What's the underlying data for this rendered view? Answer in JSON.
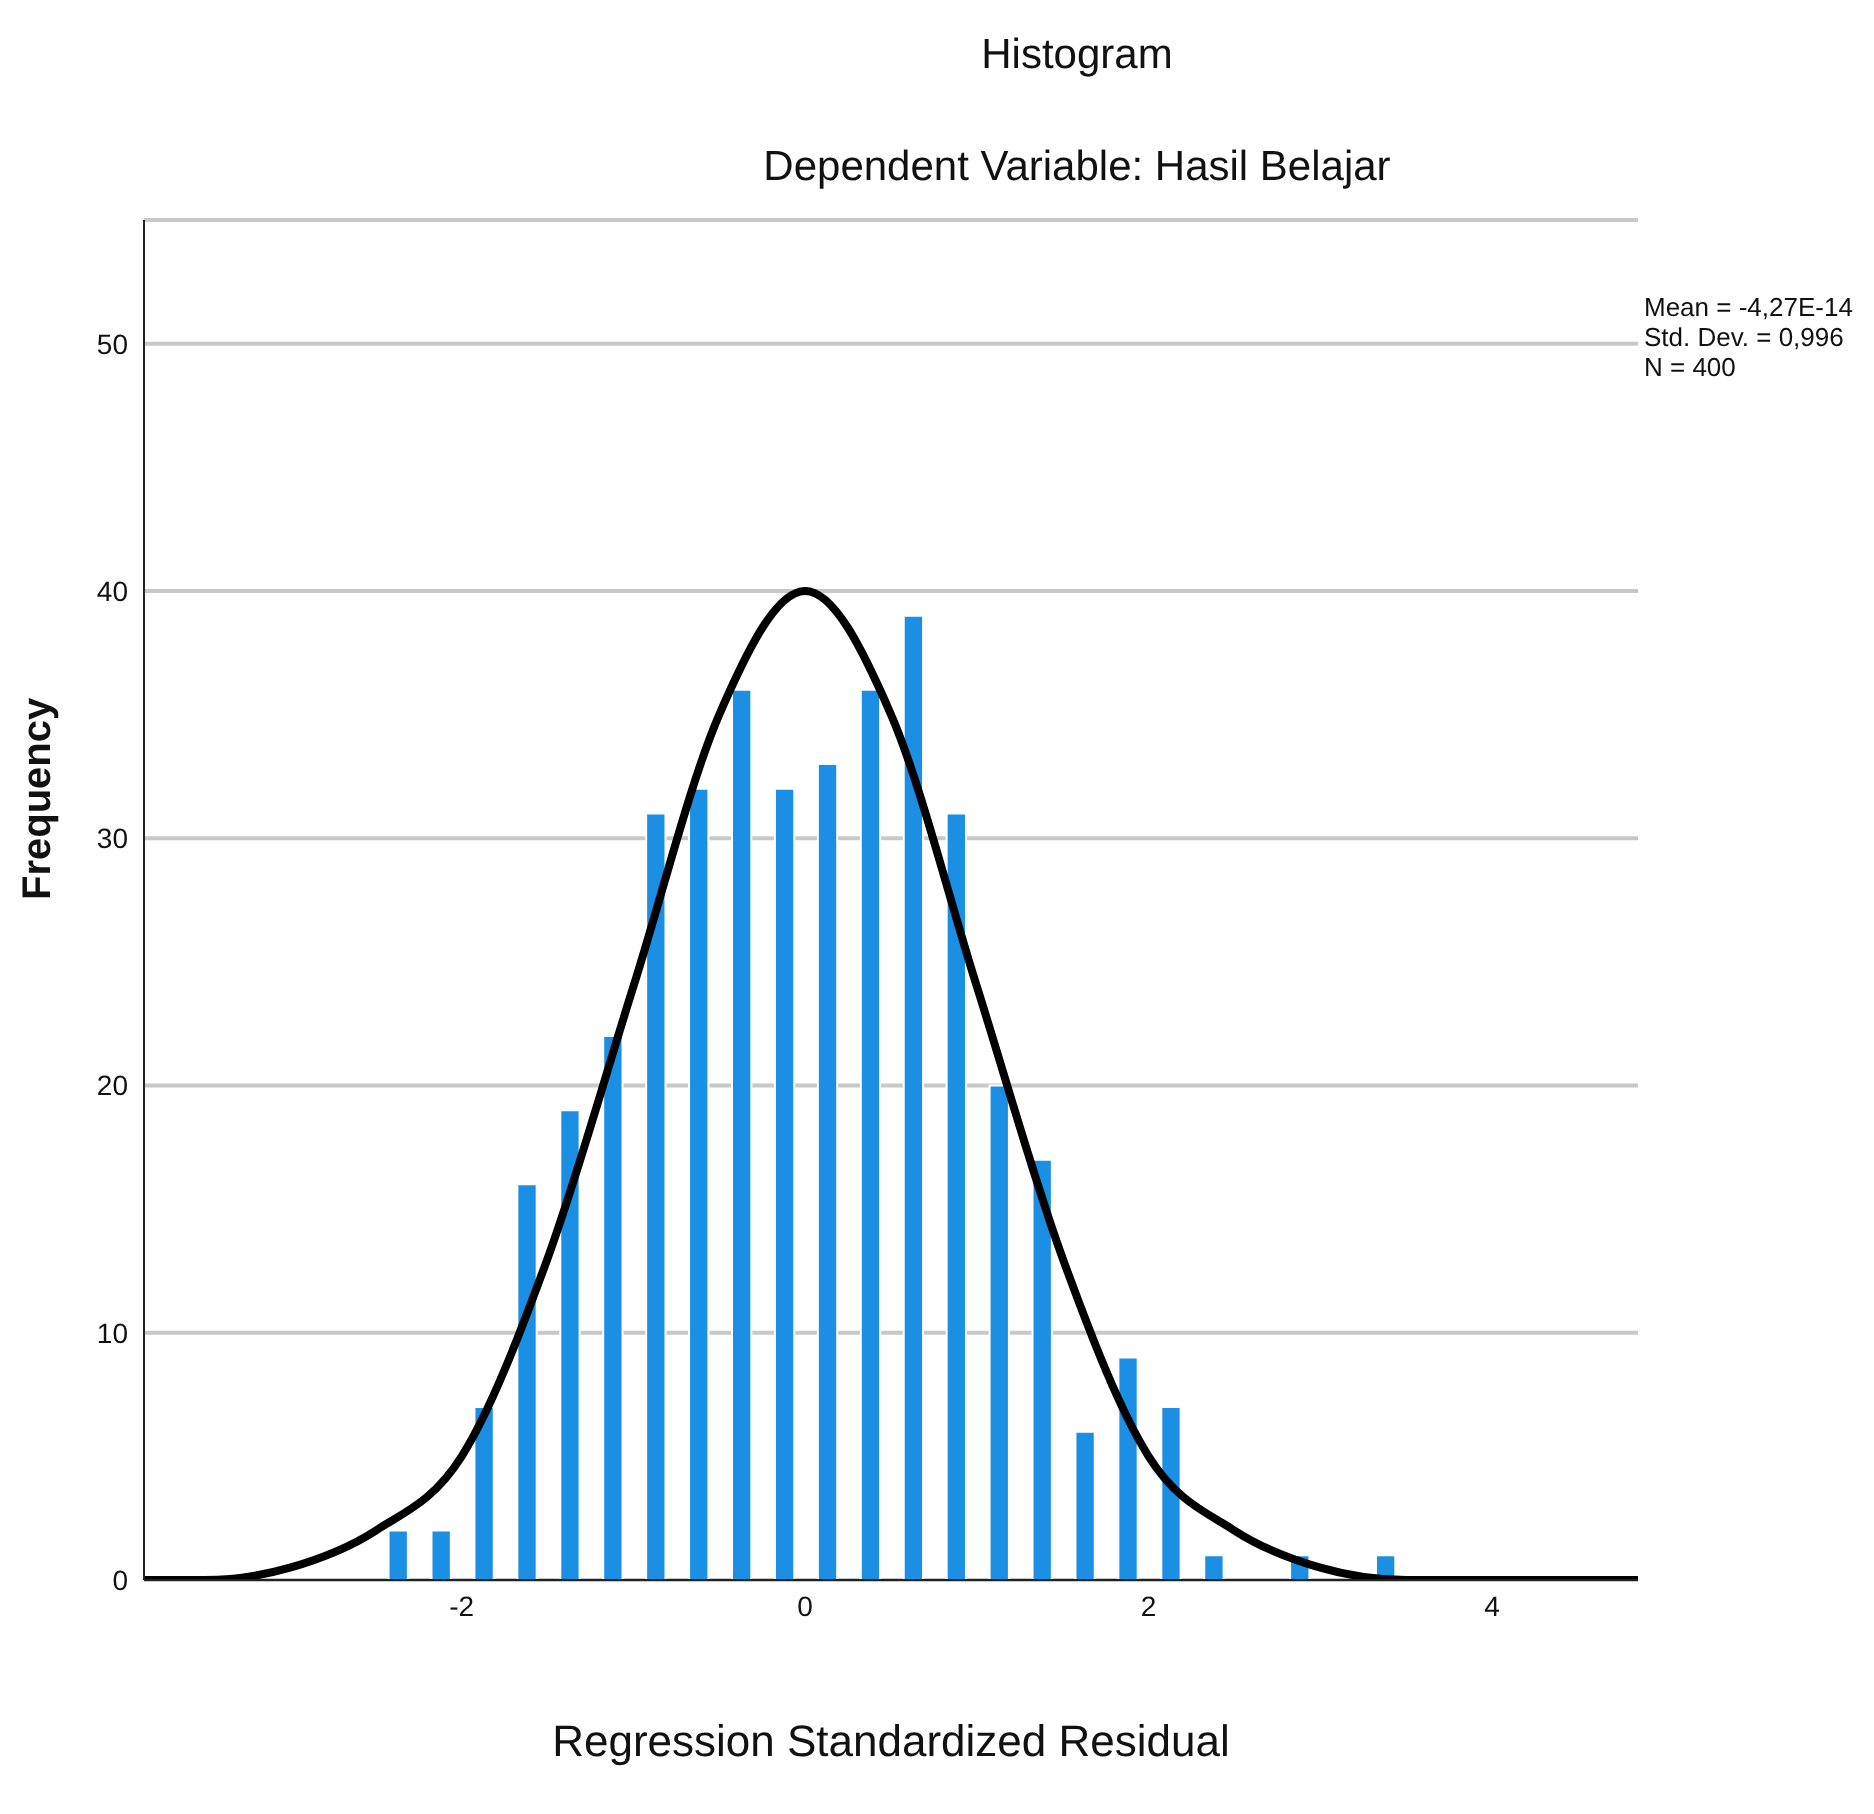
{
  "chart_data": {
    "type": "histogram",
    "title": "Histogram",
    "subtitle": "Dependent Variable: Hasil Belajar",
    "xlabel": "Regression Standardized Residual",
    "ylabel": "Frequency",
    "annotations": [
      "Mean = -4,27E-14",
      "Std. Dev. = 0,996",
      "N = 400"
    ],
    "bins": [
      -2.5,
      -2.25,
      -2,
      -1.75,
      -1.5,
      -1.25,
      -1,
      -0.75,
      -0.5,
      -0.25,
      0,
      0.25,
      0.5,
      0.75,
      1,
      1.25,
      1.5,
      1.75,
      2,
      2.25,
      2.5,
      2.75,
      3,
      3.25,
      3.5
    ],
    "values": [
      2,
      2,
      7,
      16,
      19,
      22,
      31,
      32,
      36,
      32,
      33,
      36,
      39,
      31,
      20,
      17,
      6,
      9,
      7,
      1,
      0,
      1,
      0,
      1
    ],
    "color": "#1a8fe3",
    "series": [
      {
        "type": "line",
        "color": "#000000",
        "x": [
          -3.85,
          -3.5,
          -3,
          -2.5,
          -2,
          -1.5,
          -1,
          -0.5,
          0,
          0.5,
          1,
          1.5,
          2,
          2.5,
          3,
          3.5,
          4,
          4.85
        ],
        "values": [
          0,
          0,
          0.5,
          2,
          5,
          13,
          24,
          35,
          40,
          35,
          24,
          13,
          5,
          2,
          0.5,
          0,
          0,
          0
        ]
      }
    ],
    "marker": "none",
    "xlim": [
      -3.85,
      4.85
    ],
    "xticks": [
      -2,
      0,
      2,
      4
    ],
    "ylim": [
      0,
      55
    ],
    "yticks": [
      0,
      10,
      20,
      30,
      40,
      50
    ],
    "grid": "y",
    "legend": false
  }
}
